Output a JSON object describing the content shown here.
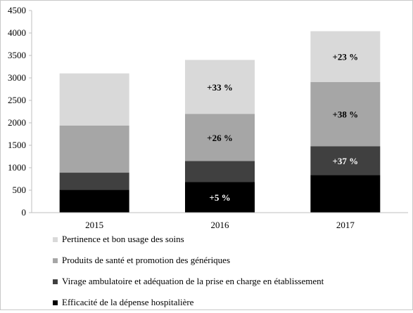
{
  "chart_data": {
    "type": "bar",
    "stacked": true,
    "categories": [
      "2015",
      "2016",
      "2017"
    ],
    "series": [
      {
        "name": "Efficacité de la dépense hospitalière",
        "color": "#000000",
        "values": [
          510,
          680,
          840
        ],
        "labels": [
          "",
          "+5 %",
          ""
        ]
      },
      {
        "name": "Virage ambulatoire et adéquation de la prise en charge en établissement",
        "color": "#404040",
        "values": [
          380,
          470,
          640
        ],
        "labels": [
          "",
          "",
          "+37 %"
        ]
      },
      {
        "name": "Produits de santé et promotion des génériques",
        "color": "#a6a6a6",
        "values": [
          1050,
          1050,
          1430
        ],
        "labels": [
          "",
          "+26 %",
          "+38 %"
        ]
      },
      {
        "name": "Pertinence et bon usage des soins",
        "color": "#d9d9d9",
        "values": [
          1160,
          1200,
          1130
        ],
        "labels": [
          "",
          "+33 %",
          "+23 %"
        ]
      }
    ],
    "ylim": [
      0,
      4500
    ],
    "yticks": [
      0,
      500,
      1000,
      1500,
      2000,
      2500,
      3000,
      3500,
      4000,
      4500
    ],
    "grid": false,
    "legend_position": "bottom",
    "legend_order": [
      3,
      2,
      1,
      0
    ],
    "title": "",
    "xlabel": "",
    "ylabel": ""
  }
}
